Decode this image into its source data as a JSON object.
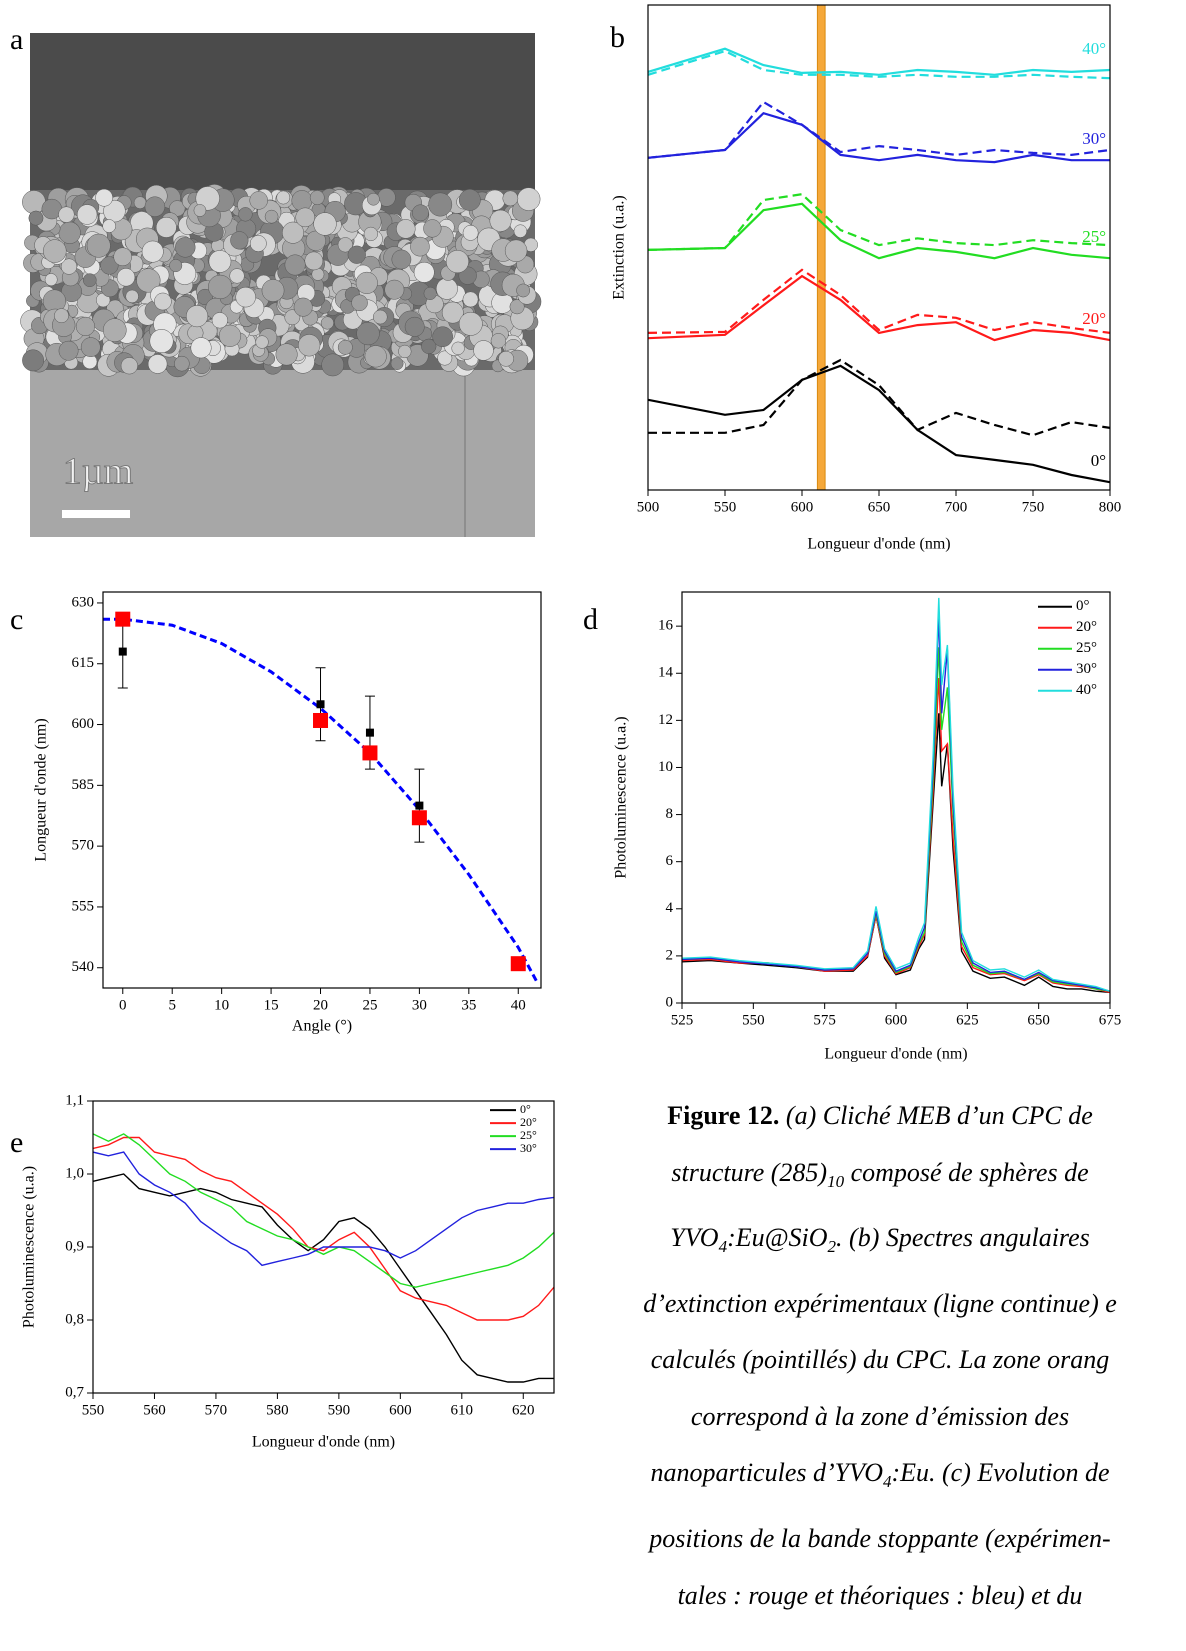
{
  "image": {
    "panel": "a",
    "scale_bar_label": "1µm"
  },
  "caption": {
    "lines": [
      [
        {
          "text": "Figure 12.",
          "bold": true
        },
        {
          "text": " (a) Cliché MEB d’un CPC de"
        }
      ],
      [
        {
          "text": "structure (285)"
        },
        {
          "text": "10",
          "sub": true
        },
        {
          "text": " composé de sphères de"
        }
      ],
      [
        {
          "text": "YVO"
        },
        {
          "text": "4",
          "sub": true
        },
        {
          "text": ":Eu@SiO"
        },
        {
          "text": "2",
          "sub": true
        },
        {
          "text": ". (b) Spectres angulaires"
        }
      ],
      [
        {
          "text": "d’extinction expérimentaux (ligne continue) e"
        }
      ],
      [
        {
          "text": "calculés (pointillés) du CPC. La zone orang"
        }
      ],
      [
        {
          "text": "correspond à la zone d’émission des"
        }
      ],
      [
        {
          "text": "nanoparticules d’YVO"
        },
        {
          "text": "4",
          "sub": true
        },
        {
          "text": ":Eu. (c) Evolution de"
        }
      ],
      [
        {
          "text": "positions de la bande stoppante (expérimen-"
        }
      ],
      [
        {
          "text": "tales : rouge et théoriques : bleu) et du"
        }
      ]
    ]
  },
  "chart_data": [
    {
      "type": "line",
      "panel": "b",
      "x_label": "Longueur d'onde (nm)",
      "y_label": "Extinction (u.a.)",
      "x": [
        500,
        550,
        575,
        600,
        625,
        650,
        675,
        700,
        725,
        750,
        775,
        800
      ],
      "xlim": [
        500,
        800
      ],
      "xticks": [
        500,
        550,
        600,
        650,
        700,
        750,
        800
      ],
      "ylim": [
        0,
        10
      ],
      "band": [
        610,
        615
      ],
      "band_color": "#f5a83a",
      "series": [
        {
          "name": "0°",
          "color": "#000000",
          "values": [
            1.86,
            1.55,
            1.65,
            2.27,
            2.56,
            2.06,
            1.24,
            0.72,
            0.62,
            0.52,
            0.31,
            0.16
          ],
          "values_calc": [
            1.18,
            1.18,
            1.34,
            2.27,
            2.68,
            2.16,
            1.24,
            1.59,
            1.34,
            1.13,
            1.4,
            1.28
          ]
        },
        {
          "name": "20°",
          "color": "#ff1a1a",
          "values": [
            3.13,
            3.2,
            3.81,
            4.41,
            3.92,
            3.24,
            3.4,
            3.46,
            3.09,
            3.3,
            3.24,
            3.09
          ],
          "values_calc": [
            3.24,
            3.26,
            3.92,
            4.54,
            4.02,
            3.3,
            3.61,
            3.55,
            3.3,
            3.46,
            3.34,
            3.24
          ]
        },
        {
          "name": "25°",
          "color": "#22dd22",
          "values": [
            4.95,
            4.99,
            5.77,
            5.9,
            5.15,
            4.78,
            4.99,
            4.91,
            4.78,
            4.99,
            4.85,
            4.78
          ],
          "values_calc": [
            4.95,
            4.99,
            5.98,
            6.1,
            5.36,
            5.05,
            5.19,
            5.09,
            5.05,
            5.15,
            5.09,
            5.05
          ]
        },
        {
          "name": "30°",
          "color": "#2222dd",
          "values": [
            6.85,
            7.01,
            7.77,
            7.53,
            6.91,
            6.8,
            6.91,
            6.8,
            6.76,
            6.91,
            6.8,
            6.8
          ],
          "values_calc": [
            6.85,
            7.01,
            8.0,
            7.53,
            6.97,
            7.09,
            7.01,
            6.91,
            7.01,
            6.95,
            6.91,
            7.01
          ]
        },
        {
          "name": "40°",
          "color": "#22dddd",
          "values": [
            8.62,
            9.1,
            8.76,
            8.6,
            8.62,
            8.56,
            8.66,
            8.62,
            8.56,
            8.66,
            8.62,
            8.66
          ],
          "values_calc": [
            8.56,
            9.05,
            8.66,
            8.56,
            8.56,
            8.52,
            8.56,
            8.52,
            8.52,
            8.56,
            8.52,
            8.49
          ]
        }
      ]
    },
    {
      "type": "scatter",
      "panel": "c",
      "x_label": "Angle (°)",
      "y_label": "Longueur d'onde (nm)",
      "xlim": [
        -2,
        42.3
      ],
      "xticks": [
        0,
        5,
        10,
        15,
        20,
        25,
        30,
        35,
        40
      ],
      "ylim": [
        535,
        632.7
      ],
      "yticks": [
        540,
        555,
        570,
        585,
        600,
        615,
        630
      ],
      "series": [
        {
          "color": "#0000ff",
          "style": "dashed",
          "x": [
            -2,
            0,
            5,
            10,
            15,
            20,
            25,
            30,
            35,
            40,
            42
          ],
          "values": [
            626,
            626,
            624.5,
            620,
            613,
            604,
            593,
            579,
            563,
            545,
            536
          ]
        },
        {
          "color": "#000000",
          "marker": "square",
          "size": 8,
          "x": [
            0,
            20,
            25,
            30
          ],
          "values": [
            618,
            605,
            598,
            580
          ],
          "errors": [
            9,
            9,
            9,
            9
          ]
        },
        {
          "color": "#ff0000",
          "marker": "square",
          "size": 15,
          "x": [
            0,
            20,
            25,
            30,
            40
          ],
          "values": [
            626,
            601,
            593,
            577,
            541
          ]
        }
      ]
    },
    {
      "type": "line",
      "panel": "d",
      "x_label": "Longueur d'onde (nm)",
      "y_label": "Photoluminescence (u.a.)",
      "legend": "upper right",
      "x": [
        525,
        535,
        545,
        555,
        565,
        575,
        585,
        590,
        593,
        596,
        600,
        605,
        608,
        610,
        613,
        615,
        616,
        618,
        620,
        623,
        627,
        633,
        638,
        645,
        650,
        655,
        660,
        665,
        670,
        675
      ],
      "xlim": [
        525,
        675
      ],
      "xticks": [
        525,
        550,
        575,
        600,
        625,
        650,
        675
      ],
      "ylim": [
        0,
        17.45
      ],
      "yticks": [
        0,
        2,
        4,
        6,
        8,
        10,
        12,
        14,
        16
      ],
      "series": [
        {
          "name": "0°",
          "color": "#000000",
          "values": [
            1.75,
            1.8,
            1.7,
            1.6,
            1.5,
            1.35,
            1.35,
            1.95,
            3.7,
            1.9,
            1.2,
            1.4,
            2.3,
            2.7,
            8.5,
            12.3,
            9.2,
            11.0,
            6.5,
            2.2,
            1.35,
            1.05,
            1.1,
            0.75,
            1.1,
            0.7,
            0.6,
            0.6,
            0.5,
            0.45
          ]
        },
        {
          "name": "20°",
          "color": "#ff1a1a",
          "values": [
            1.8,
            1.85,
            1.7,
            1.7,
            1.55,
            1.35,
            1.4,
            2.0,
            3.7,
            2.0,
            1.25,
            1.5,
            2.4,
            2.9,
            9.0,
            13.8,
            10.7,
            11.0,
            7.0,
            2.4,
            1.5,
            1.2,
            1.25,
            0.95,
            1.2,
            0.85,
            0.75,
            0.7,
            0.6,
            0.45
          ]
        },
        {
          "name": "25°",
          "color": "#22dd22",
          "values": [
            1.85,
            1.9,
            1.75,
            1.7,
            1.55,
            1.4,
            1.45,
            2.1,
            3.8,
            2.1,
            1.3,
            1.55,
            2.5,
            3.0,
            9.5,
            15.1,
            11.6,
            13.4,
            8.0,
            2.6,
            1.6,
            1.25,
            1.3,
            1.0,
            1.25,
            0.9,
            0.8,
            0.75,
            0.6,
            0.5
          ]
        },
        {
          "name": "30°",
          "color": "#2222dd",
          "values": [
            1.85,
            1.9,
            1.75,
            1.65,
            1.55,
            1.4,
            1.45,
            2.1,
            3.9,
            2.2,
            1.35,
            1.6,
            2.6,
            3.2,
            10,
            16.5,
            12.3,
            15.0,
            8.5,
            2.8,
            1.7,
            1.3,
            1.35,
            1.0,
            1.3,
            0.95,
            0.85,
            0.75,
            0.65,
            0.5
          ]
        },
        {
          "name": "40°",
          "color": "#22dddd",
          "values": [
            1.9,
            1.95,
            1.8,
            1.7,
            1.6,
            1.45,
            1.5,
            2.2,
            4.1,
            2.3,
            1.45,
            1.7,
            2.8,
            3.4,
            10.5,
            17.2,
            13.5,
            15.2,
            9.0,
            3.0,
            1.8,
            1.4,
            1.45,
            1.1,
            1.4,
            1.0,
            0.9,
            0.8,
            0.7,
            0.5
          ]
        }
      ]
    },
    {
      "type": "line",
      "panel": "e",
      "x_label": "Longueur d'onde (nm)",
      "y_label": "Photoluminescence (u.a.)",
      "legend": "upper right",
      "x": [
        550,
        552.5,
        555,
        557.5,
        560,
        562.5,
        565,
        567.5,
        570,
        572.5,
        575,
        577.5,
        580,
        582.5,
        585,
        587.5,
        590,
        592.5,
        595,
        597.5,
        600,
        602.5,
        605,
        607.5,
        610,
        612.5,
        615,
        617.5,
        620,
        622.5,
        625
      ],
      "xlim": [
        550,
        625
      ],
      "xticks": [
        550,
        560,
        570,
        580,
        590,
        600,
        610,
        620
      ],
      "ylim": [
        0.7,
        1.1
      ],
      "yticks": [
        {
          "value": 0.7,
          "label": "0,7"
        },
        {
          "value": 0.8,
          "label": "0,8"
        },
        {
          "value": 0.9,
          "label": "0,9"
        },
        {
          "value": 1.0,
          "label": "1,0"
        },
        {
          "value": 1.1,
          "label": "1,1"
        }
      ],
      "series": [
        {
          "name": "0°",
          "color": "#000000",
          "values": [
            0.99,
            0.995,
            1.0,
            0.98,
            0.975,
            0.97,
            0.975,
            0.98,
            0.975,
            0.965,
            0.96,
            0.955,
            0.93,
            0.91,
            0.895,
            0.91,
            0.935,
            0.94,
            0.925,
            0.9,
            0.87,
            0.84,
            0.81,
            0.78,
            0.745,
            0.725,
            0.72,
            0.715,
            0.715,
            0.72,
            0.72
          ]
        },
        {
          "name": "20°",
          "color": "#ff1a1a",
          "values": [
            1.035,
            1.04,
            1.05,
            1.05,
            1.03,
            1.025,
            1.02,
            1.005,
            0.995,
            0.99,
            0.975,
            0.96,
            0.945,
            0.925,
            0.9,
            0.895,
            0.91,
            0.92,
            0.9,
            0.87,
            0.84,
            0.83,
            0.825,
            0.82,
            0.81,
            0.8,
            0.8,
            0.8,
            0.805,
            0.82,
            0.845
          ]
        },
        {
          "name": "25°",
          "color": "#22dd22",
          "values": [
            1.055,
            1.045,
            1.055,
            1.04,
            1.02,
            1.0,
            0.99,
            0.975,
            0.965,
            0.955,
            0.935,
            0.925,
            0.915,
            0.91,
            0.9,
            0.89,
            0.9,
            0.895,
            0.88,
            0.865,
            0.85,
            0.845,
            0.85,
            0.855,
            0.86,
            0.865,
            0.87,
            0.875,
            0.885,
            0.9,
            0.92
          ]
        },
        {
          "name": "30°",
          "color": "#2222dd",
          "values": [
            1.03,
            1.025,
            1.03,
            1.0,
            0.985,
            0.975,
            0.96,
            0.935,
            0.92,
            0.905,
            0.895,
            0.875,
            0.88,
            0.885,
            0.89,
            0.9,
            0.9,
            0.9,
            0.9,
            0.895,
            0.885,
            0.895,
            0.91,
            0.925,
            0.94,
            0.95,
            0.955,
            0.96,
            0.96,
            0.965,
            0.968
          ]
        }
      ]
    }
  ]
}
